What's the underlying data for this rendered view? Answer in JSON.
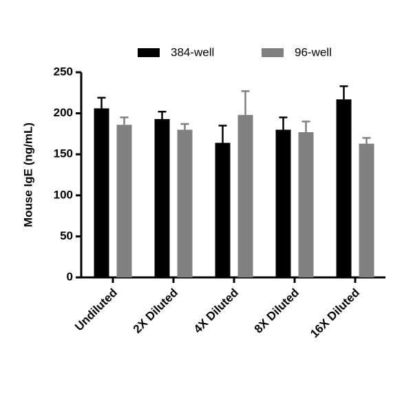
{
  "chart_data": {
    "type": "bar",
    "y_label": "Mouse IgE (ng/mL)",
    "categories": [
      "Undiluted",
      "2X Diluted",
      "4X Diluted",
      "8X Diluted",
      "16X Diluted"
    ],
    "series": [
      {
        "name": "384-well",
        "color": "#000000",
        "values": [
          206,
          193,
          164,
          180,
          217
        ],
        "errors": [
          13,
          9,
          21,
          15,
          16
        ]
      },
      {
        "name": "96-well",
        "color": "#808080",
        "values": [
          186,
          180,
          198,
          177,
          163
        ],
        "errors": [
          9,
          7,
          29,
          13,
          7
        ]
      }
    ],
    "ylim": [
      0,
      250
    ],
    "yticks": [
      0,
      50,
      100,
      150,
      200,
      250
    ],
    "legend": "top"
  }
}
